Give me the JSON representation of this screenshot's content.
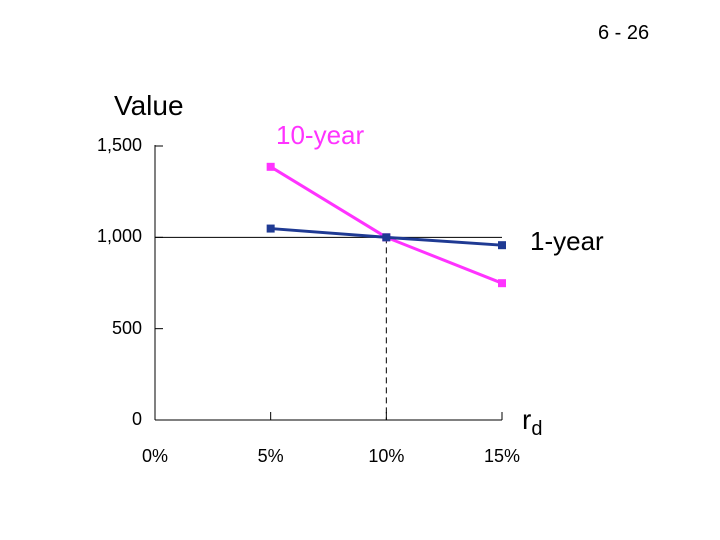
{
  "slide": {
    "page_number": "6 - 26"
  },
  "chart_data": {
    "type": "line",
    "title": "",
    "ylabel": "Value",
    "xlabel_main": "r",
    "xlabel_sub": "d",
    "x": [
      "0%",
      "5%",
      "10%",
      "15%"
    ],
    "y_ticks": [
      "0",
      "500",
      "1,000",
      "1,500"
    ],
    "y_tick_values": [
      0,
      500,
      1000,
      1500
    ],
    "ylim": [
      0,
      1500
    ],
    "x_values": [
      0,
      5,
      10,
      15
    ],
    "reference": {
      "x": 10,
      "y": 1000,
      "style": "dashed vertical line from x-axis and horizontal line at 1,000"
    },
    "series": [
      {
        "name": "10-year",
        "color": "#ff33ff",
        "x": [
          5,
          10,
          15
        ],
        "values": [
          1386,
          1000,
          749
        ]
      },
      {
        "name": "1-year",
        "color": "#1f3a93",
        "x": [
          5,
          10,
          15
        ],
        "values": [
          1048,
          1000,
          957
        ]
      }
    ],
    "marker": "square",
    "grid": false,
    "legend": "inline labels"
  }
}
